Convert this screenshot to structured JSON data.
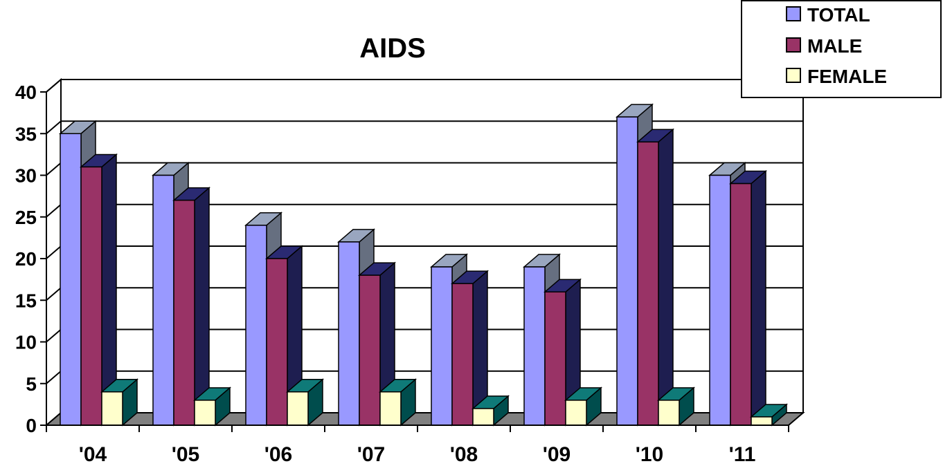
{
  "chart_data": {
    "type": "bar",
    "title": "AIDS",
    "xlabel": "",
    "ylabel": "",
    "ylim": [
      0,
      40
    ],
    "yticks": [
      0,
      5,
      10,
      15,
      20,
      25,
      30,
      35,
      40
    ],
    "yticklabels": [
      "0",
      "5",
      "10",
      "15",
      "20",
      "25",
      "30",
      "35",
      "40"
    ],
    "categories": [
      "'04",
      "'05",
      "'06",
      "'07",
      "'08",
      "'09",
      "'10",
      "'11"
    ],
    "series": [
      {
        "name": "TOTAL",
        "values": [
          35,
          30,
          24,
          22,
          19,
          19,
          37,
          30
        ]
      },
      {
        "name": "MALE",
        "values": [
          31,
          27,
          20,
          18,
          17,
          16,
          34,
          29
        ]
      },
      {
        "name": "FEMALE",
        "values": [
          4,
          3,
          4,
          4,
          2,
          3,
          3,
          1
        ]
      }
    ],
    "grid": true,
    "three_d": true,
    "legend_position": "top-right"
  },
  "colors": {
    "TOTAL": {
      "front": "#9999ff",
      "top": "#99a6bf",
      "side": "#666f80"
    },
    "MALE": {
      "front": "#993366",
      "top": "#2a2a72",
      "side": "#1e1e50"
    },
    "FEMALE": {
      "front": "#ffffcc",
      "top": "#0f7a78",
      "side": "#004d4d"
    },
    "floor": "#808080",
    "grid": "#000000"
  }
}
